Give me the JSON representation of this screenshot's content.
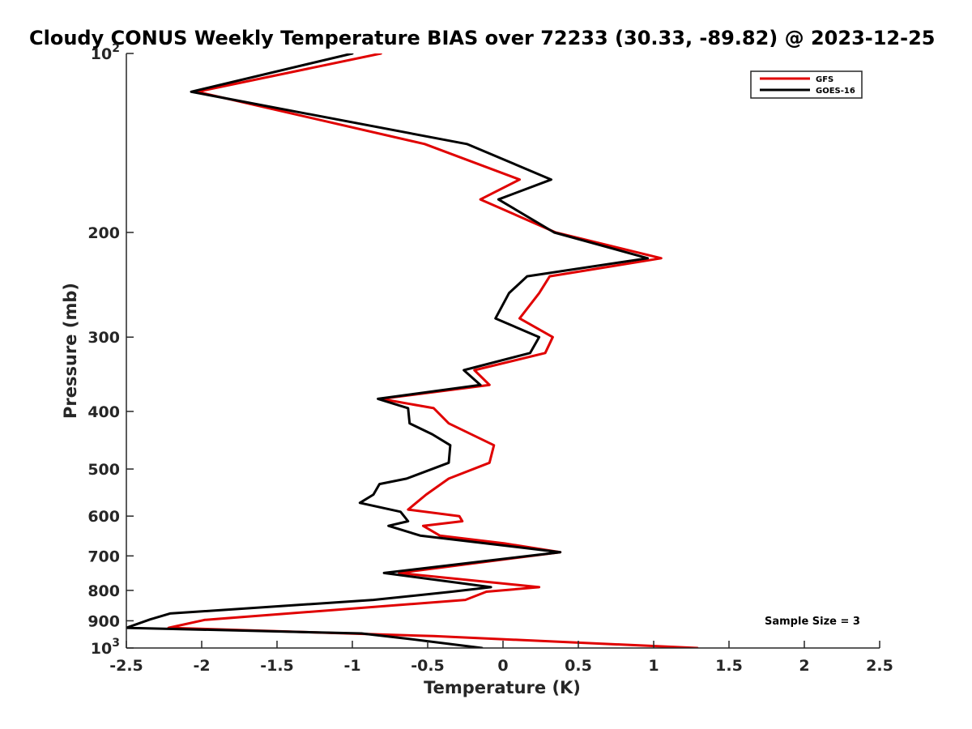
{
  "chart_data": {
    "type": "line",
    "title": "Cloudy CONUS Weekly Temperature BIAS over 72233 (30.33, -89.82) @ 2023-12-25",
    "xlabel": "Temperature (K)",
    "ylabel": "Pressure (mb)",
    "xlim": [
      -2.5,
      2.5
    ],
    "ylim": [
      100,
      1000
    ],
    "y_scale": "log",
    "y_reversed": true,
    "x_ticks": [
      "-2.5",
      "-2",
      "-1.5",
      "-1",
      "-0.5",
      "0",
      "0.5",
      "1",
      "1.5",
      "2",
      "2.5"
    ],
    "y_ticks": [
      {
        "value": 100,
        "label": "10",
        "sup": "2"
      },
      {
        "value": 200,
        "label": "200",
        "sup": ""
      },
      {
        "value": 300,
        "label": "300",
        "sup": ""
      },
      {
        "value": 400,
        "label": "400",
        "sup": ""
      },
      {
        "value": 500,
        "label": "500",
        "sup": ""
      },
      {
        "value": 600,
        "label": "600",
        "sup": ""
      },
      {
        "value": 700,
        "label": "700",
        "sup": ""
      },
      {
        "value": 800,
        "label": "800",
        "sup": ""
      },
      {
        "value": 900,
        "label": "900",
        "sup": ""
      },
      {
        "value": 1000,
        "label": "10",
        "sup": "3"
      }
    ],
    "legend_position": "top-right",
    "annotation": "Sample Size = 3",
    "series": [
      {
        "name": "GFS",
        "color": "#e00000",
        "x": [
          -0.81,
          -2.03,
          -0.52,
          0.11,
          -0.15,
          0.35,
          1.05,
          0.31,
          0.24,
          0.11,
          0.33,
          0.28,
          -0.19,
          -0.09,
          -0.81,
          -0.46,
          -0.36,
          -0.06,
          -0.09,
          -0.36,
          -0.51,
          -0.63,
          -0.29,
          -0.27,
          -0.53,
          -0.42,
          0.01,
          0.38,
          -0.69,
          0.24,
          -0.11,
          -0.25,
          -1.98,
          -2.22,
          -0.46,
          1.29
        ],
        "y": [
          100,
          116,
          142,
          163,
          176,
          200,
          221,
          237,
          253,
          279,
          300,
          319,
          341,
          361,
          381,
          395,
          419,
          456,
          488,
          519,
          552,
          585,
          600,
          612,
          623,
          647,
          667,
          690,
          748,
          790,
          804,
          830,
          897,
          925,
          955,
          1000
        ]
      },
      {
        "name": "GOES-16",
        "color": "#000000",
        "x": [
          -1.0,
          -2.07,
          -0.24,
          0.32,
          -0.03,
          0.34,
          0.96,
          0.16,
          0.04,
          -0.05,
          0.24,
          0.18,
          -0.26,
          -0.15,
          -0.83,
          -0.63,
          -0.62,
          -0.47,
          -0.35,
          -0.36,
          -0.64,
          -0.82,
          -0.86,
          -0.95,
          -0.68,
          -0.63,
          -0.76,
          -0.55,
          0.38,
          -0.79,
          -0.08,
          -0.34,
          -0.86,
          -2.21,
          -2.34,
          -2.5,
          -0.94,
          -0.63,
          -0.14
        ],
        "y": [
          100,
          116,
          142,
          163,
          176,
          200,
          221,
          237,
          253,
          279,
          300,
          319,
          341,
          361,
          381,
          395,
          419,
          437,
          456,
          488,
          519,
          530,
          552,
          570,
          590,
          612,
          623,
          647,
          690,
          748,
          790,
          804,
          830,
          875,
          895,
          925,
          945,
          965,
          1000
        ]
      }
    ]
  }
}
